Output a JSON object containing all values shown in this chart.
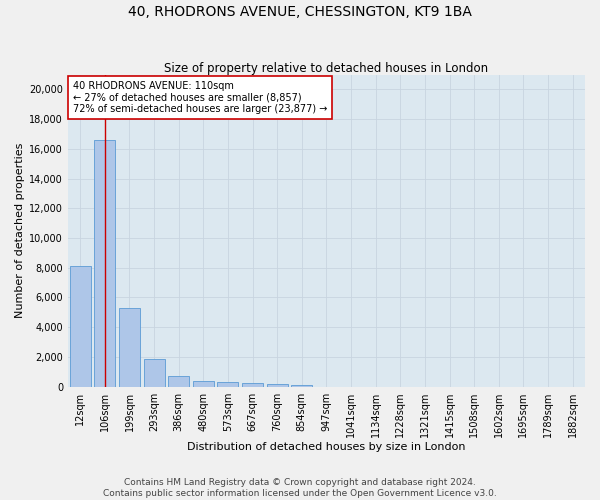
{
  "title": "40, RHODRONS AVENUE, CHESSINGTON, KT9 1BA",
  "subtitle": "Size of property relative to detached houses in London",
  "xlabel": "Distribution of detached houses by size in London",
  "ylabel": "Number of detached properties",
  "footer_line1": "Contains HM Land Registry data © Crown copyright and database right 2024.",
  "footer_line2": "Contains public sector information licensed under the Open Government Licence v3.0.",
  "categories": [
    "12sqm",
    "106sqm",
    "199sqm",
    "293sqm",
    "386sqm",
    "480sqm",
    "573sqm",
    "667sqm",
    "760sqm",
    "854sqm",
    "947sqm",
    "1041sqm",
    "1134sqm",
    "1228sqm",
    "1321sqm",
    "1415sqm",
    "1508sqm",
    "1602sqm",
    "1695sqm",
    "1789sqm",
    "1882sqm"
  ],
  "values": [
    8100,
    16600,
    5300,
    1850,
    700,
    380,
    290,
    210,
    170,
    130,
    0,
    0,
    0,
    0,
    0,
    0,
    0,
    0,
    0,
    0,
    0
  ],
  "bar_color": "#aec6e8",
  "bar_edge_color": "#5b9bd5",
  "vline_x": 1,
  "vline_color": "#cc0000",
  "annotation_text": "40 RHODRONS AVENUE: 110sqm\n← 27% of detached houses are smaller (8,857)\n72% of semi-detached houses are larger (23,877) →",
  "annotation_box_color": "#ffffff",
  "annotation_box_edge": "#cc0000",
  "ylim": [
    0,
    21000
  ],
  "yticks": [
    0,
    2000,
    4000,
    6000,
    8000,
    10000,
    12000,
    14000,
    16000,
    18000,
    20000
  ],
  "grid_color": "#c8d4e0",
  "bg_color": "#dce8f0",
  "fig_bg_color": "#f0f0f0",
  "title_fontsize": 10,
  "subtitle_fontsize": 8.5,
  "axis_label_fontsize": 8,
  "tick_fontsize": 7,
  "footer_fontsize": 6.5,
  "annotation_fontsize": 7
}
